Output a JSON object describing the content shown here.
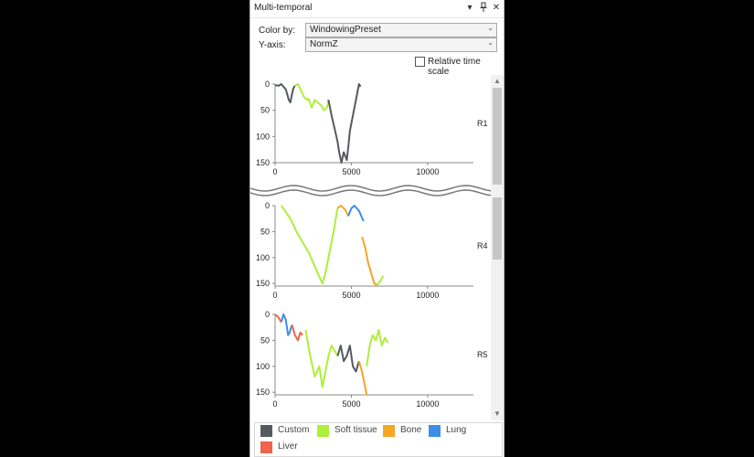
{
  "window": {
    "title": "Multi-temporal"
  },
  "titlebar_buttons": {
    "dropdown": "▾",
    "pin": "📌",
    "close": "✕"
  },
  "controls": {
    "color_by_label": "Color by:",
    "color_by_value": "WindowingPreset",
    "y_axis_label": "Y-axis:",
    "y_axis_value": "NormZ",
    "relative_time_label": "Relative time scale",
    "relative_time_checked": false
  },
  "legend": [
    {
      "label": "Custom",
      "color": "#555a60"
    },
    {
      "label": "Soft tissue",
      "color": "#adef3a"
    },
    {
      "label": "Bone",
      "color": "#f5a623"
    },
    {
      "label": "Lung",
      "color": "#3c8ee6"
    },
    {
      "label": "Liver",
      "color": "#f0644b"
    }
  ],
  "chart_data": [
    {
      "type": "line",
      "label": "R1",
      "y_reversed": true,
      "xlim": [
        0,
        13000
      ],
      "ylim": [
        0,
        150
      ],
      "x_ticks": [
        "0",
        "5000",
        "10000"
      ],
      "y_ticks": [
        "0",
        "50",
        "100",
        "150"
      ],
      "segments": [
        {
          "preset": "Custom",
          "points": [
            [
              0,
              2
            ],
            [
              250,
              3
            ],
            [
              400,
              0
            ],
            [
              700,
              10
            ],
            [
              900,
              30
            ],
            [
              1000,
              35
            ],
            [
              1100,
              20
            ],
            [
              1200,
              8
            ],
            [
              1300,
              3
            ]
          ]
        },
        {
          "preset": "Soft tissue",
          "points": [
            [
              1300,
              3
            ],
            [
              1500,
              0
            ],
            [
              1700,
              12
            ],
            [
              1900,
              25
            ],
            [
              2100,
              30
            ],
            [
              2200,
              28
            ],
            [
              2400,
              45
            ],
            [
              2600,
              30
            ],
            [
              2800,
              35
            ],
            [
              3000,
              40
            ],
            [
              3200,
              50
            ],
            [
              3400,
              45
            ],
            [
              3500,
              30
            ]
          ]
        },
        {
          "preset": "Custom",
          "points": [
            [
              3500,
              30
            ],
            [
              3700,
              60
            ],
            [
              3900,
              85
            ],
            [
              4100,
              110
            ],
            [
              4200,
              130
            ],
            [
              4350,
              150
            ],
            [
              4500,
              130
            ],
            [
              4700,
              145
            ],
            [
              4800,
              120
            ],
            [
              4900,
              90
            ],
            [
              5100,
              60
            ],
            [
              5300,
              30
            ],
            [
              5500,
              0
            ],
            [
              5600,
              5
            ]
          ]
        }
      ]
    },
    {
      "type": "line",
      "label": "R4",
      "y_reversed": true,
      "xlim": [
        0,
        13000
      ],
      "ylim": [
        0,
        155
      ],
      "x_ticks": [
        "0",
        "5000",
        "10000"
      ],
      "y_ticks": [
        "0",
        "50",
        "100",
        "150"
      ],
      "segments": [
        {
          "preset": "Soft tissue",
          "points": [
            [
              400,
              0
            ],
            [
              700,
              12
            ],
            [
              1000,
              25
            ],
            [
              1400,
              50
            ],
            [
              1800,
              70
            ],
            [
              2200,
              90
            ],
            [
              2500,
              110
            ],
            [
              2800,
              130
            ],
            [
              3100,
              150
            ],
            [
              3300,
              130
            ],
            [
              3500,
              100
            ],
            [
              3700,
              70
            ],
            [
              3900,
              40
            ],
            [
              4000,
              20
            ],
            [
              4100,
              5
            ]
          ]
        },
        {
          "preset": "Bone",
          "points": [
            [
              4100,
              5
            ],
            [
              4300,
              0
            ],
            [
              4600,
              8
            ],
            [
              4800,
              20
            ]
          ]
        },
        {
          "preset": "Lung",
          "points": [
            [
              4800,
              20
            ],
            [
              5000,
              5
            ],
            [
              5200,
              0
            ],
            [
              5500,
              10
            ],
            [
              5800,
              30
            ]
          ]
        },
        {
          "preset": "Bone",
          "points": [
            [
              5700,
              60
            ],
            [
              5900,
              80
            ],
            [
              6100,
              110
            ],
            [
              6300,
              130
            ],
            [
              6500,
              150
            ],
            [
              6700,
              153
            ]
          ]
        },
        {
          "preset": "Soft tissue",
          "points": [
            [
              6700,
              153
            ],
            [
              6900,
              145
            ],
            [
              7100,
              135
            ]
          ]
        }
      ]
    },
    {
      "type": "line",
      "label": "R5",
      "y_reversed": true,
      "xlim": [
        0,
        13000
      ],
      "ylim": [
        0,
        155
      ],
      "x_ticks": [
        "0",
        "5000",
        "10000"
      ],
      "y_ticks": [
        "0",
        "50",
        "100",
        "150"
      ],
      "segments": [
        {
          "preset": "Liver",
          "points": [
            [
              0,
              0
            ],
            [
              200,
              5
            ],
            [
              400,
              15
            ]
          ]
        },
        {
          "preset": "Lung",
          "points": [
            [
              400,
              15
            ],
            [
              550,
              0
            ],
            [
              700,
              10
            ],
            [
              850,
              40
            ],
            [
              950,
              35
            ],
            [
              1100,
              20
            ]
          ]
        },
        {
          "preset": "Liver",
          "points": [
            [
              1100,
              20
            ],
            [
              1300,
              40
            ],
            [
              1500,
              50
            ],
            [
              1650,
              35
            ],
            [
              1800,
              40
            ]
          ]
        },
        {
          "preset": "Soft tissue",
          "points": [
            [
              2000,
              30
            ],
            [
              2300,
              80
            ],
            [
              2600,
              120
            ],
            [
              2900,
              100
            ],
            [
              3100,
              140
            ],
            [
              3300,
              110
            ],
            [
              3500,
              80
            ],
            [
              3700,
              60
            ],
            [
              3900,
              70
            ],
            [
              4100,
              80
            ]
          ]
        },
        {
          "preset": "Custom",
          "points": [
            [
              4100,
              80
            ],
            [
              4300,
              60
            ],
            [
              4500,
              90
            ],
            [
              4700,
              80
            ],
            [
              4900,
              60
            ],
            [
              5100,
              100
            ],
            [
              5300,
              110
            ],
            [
              5500,
              90
            ]
          ]
        },
        {
          "preset": "Bone",
          "points": [
            [
              5500,
              90
            ],
            [
              5700,
              110
            ],
            [
              5900,
              140
            ],
            [
              6000,
              155
            ]
          ]
        },
        {
          "preset": "Soft tissue",
          "points": [
            [
              6000,
              100
            ],
            [
              6200,
              60
            ],
            [
              6400,
              40
            ],
            [
              6600,
              50
            ],
            [
              6800,
              30
            ],
            [
              7000,
              60
            ],
            [
              7200,
              45
            ],
            [
              7400,
              55
            ]
          ]
        }
      ]
    }
  ]
}
